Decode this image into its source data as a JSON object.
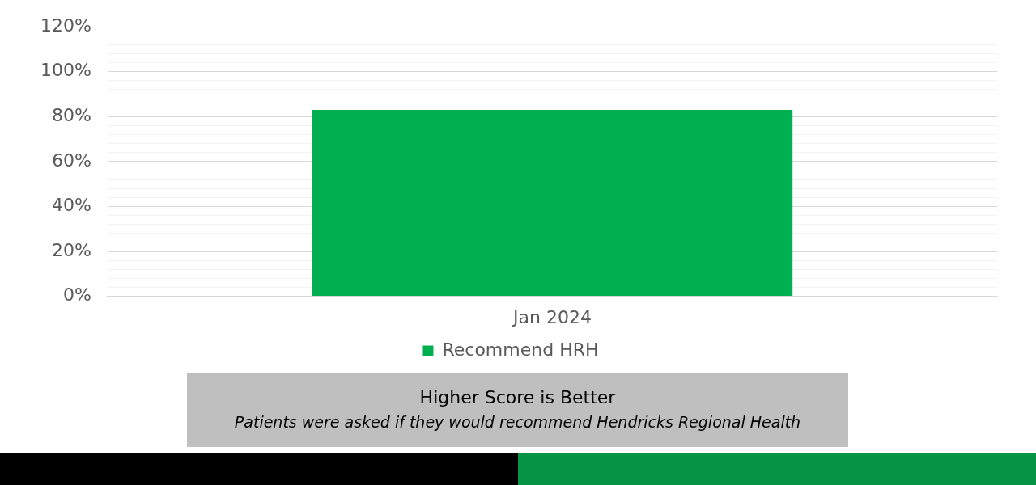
{
  "chart_data": {
    "type": "bar",
    "categories": [
      "Jan 2024"
    ],
    "series": [
      {
        "name": "Recommend HRH",
        "color": "#00b050",
        "values": [
          83
        ]
      }
    ],
    "ylim": [
      0,
      120
    ],
    "yticks": [
      {
        "value": 0,
        "label": "0%"
      },
      {
        "value": 4,
        "label": null
      },
      {
        "value": 8,
        "label": null
      },
      {
        "value": 12,
        "label": null
      },
      {
        "value": 16,
        "label": null
      },
      {
        "value": 20,
        "label": "20%"
      },
      {
        "value": 24,
        "label": null
      },
      {
        "value": 28,
        "label": null
      },
      {
        "value": 32,
        "label": null
      },
      {
        "value": 36,
        "label": null
      },
      {
        "value": 40,
        "label": "40%"
      },
      {
        "value": 44,
        "label": null
      },
      {
        "value": 48,
        "label": null
      },
      {
        "value": 52,
        "label": null
      },
      {
        "value": 56,
        "label": null
      },
      {
        "value": 60,
        "label": "60%"
      },
      {
        "value": 64,
        "label": null
      },
      {
        "value": 68,
        "label": null
      },
      {
        "value": 72,
        "label": null
      },
      {
        "value": 76,
        "label": null
      },
      {
        "value": 80,
        "label": "80%"
      },
      {
        "value": 84,
        "label": null
      },
      {
        "value": 88,
        "label": null
      },
      {
        "value": 92,
        "label": null
      },
      {
        "value": 96,
        "label": null
      },
      {
        "value": 100,
        "label": "100%"
      },
      {
        "value": 104,
        "label": null
      },
      {
        "value": 108,
        "label": null
      },
      {
        "value": 112,
        "label": null
      },
      {
        "value": 116,
        "label": null
      },
      {
        "value": 120,
        "label": "120%"
      }
    ],
    "grid": "y",
    "legend": "bottom",
    "annotations": [
      "Higher Score is Better",
      "Patients were asked if they would recommend Hendricks Regional Health"
    ]
  }
}
